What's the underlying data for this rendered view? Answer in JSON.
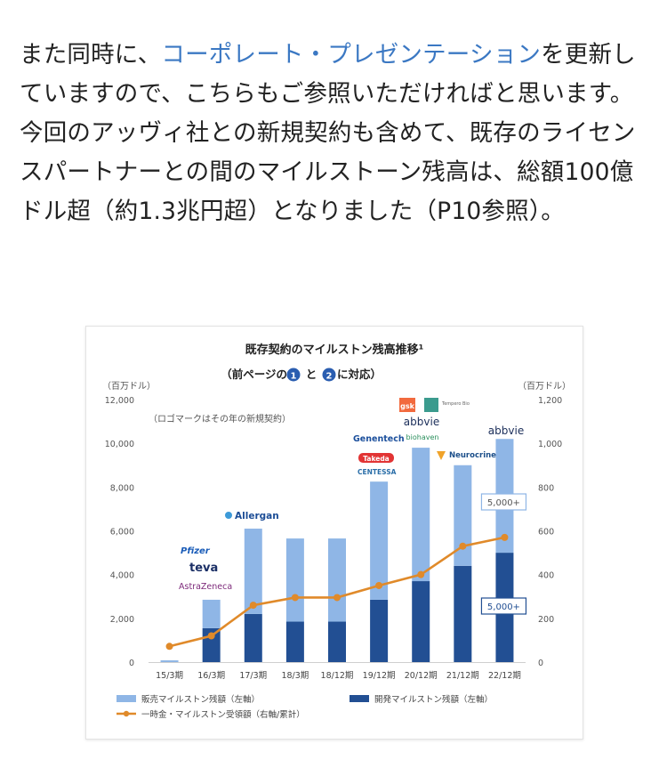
{
  "paragraph": {
    "part1": "また同時に、",
    "link": "コーポレート・プレゼンテーション",
    "part2": "を更新していますので、こちらもご参照いただければと思います。今回のアッヴィ社との新規契約も含めて、既存のライセンスパートナーとの間のマイルストーン残高は、総額100億ドル超（約1.3兆円超）となりました（P10参照）。"
  },
  "chart_data": {
    "type": "bar",
    "title": "既存契約のマイルストン残高推移¹",
    "subtitle_prefix": "（前ページの",
    "subtitle_mid": "と",
    "subtitle_suffix": "に対応）",
    "subtitle_circles": [
      "1",
      "2"
    ],
    "note": "（ロゴマークはその年の新規契約）",
    "left_axis": {
      "unit": "（百万ドル）",
      "min": 0,
      "max": 12000,
      "ticks": [
        "0",
        "2,000",
        "4,000",
        "6,000",
        "8,000",
        "10,000",
        "12,000"
      ]
    },
    "right_axis": {
      "unit": "（百万ドル）",
      "min": 0,
      "max": 1200,
      "ticks": [
        "0",
        "200",
        "400",
        "600",
        "800",
        "1,000",
        "1,200"
      ]
    },
    "categories": [
      "15/3期",
      "16/3期",
      "17/3期",
      "18/3期",
      "18/12期",
      "19/12期",
      "20/12期",
      "21/12期",
      "22/12期"
    ],
    "series": [
      {
        "name": "販売マイルストン残額（左軸）",
        "kind": "bar",
        "color": "#8fb6e6",
        "values": [
          80,
          1300,
          3900,
          3800,
          3800,
          5400,
          6100,
          4600,
          5200
        ]
      },
      {
        "name": "開発マイルストン残額（左軸）",
        "kind": "bar",
        "color": "#224f93",
        "values": [
          0,
          1550,
          2200,
          1850,
          1850,
          2850,
          3700,
          4400,
          5000
        ]
      },
      {
        "name": "一時金・マイルストン受領額（右軸/累計）",
        "kind": "line",
        "color": "#e08a2a",
        "values": [
          72,
          120,
          260,
          295,
          295,
          350,
          400,
          530,
          570
        ]
      }
    ],
    "callouts": [
      "5,000+",
      "5,000+"
    ],
    "logos": [
      {
        "category": "16/3期",
        "names": [
          "Pfizer",
          "teva",
          "AstraZeneca"
        ]
      },
      {
        "category": "17/3期",
        "names": [
          "Allergan"
        ]
      },
      {
        "category": "19/12期",
        "names": [
          "Genentech",
          "Takeda",
          "CENTESSA"
        ]
      },
      {
        "category": "20/12期",
        "names": [
          "gsk",
          "Tempero Bio",
          "abbvie",
          "biohaven"
        ]
      },
      {
        "category": "21/12期",
        "names": [
          "Neurocrine"
        ]
      },
      {
        "category": "22/12期",
        "names": [
          "abbvie"
        ]
      }
    ],
    "grid": false,
    "legend_position": "bottom"
  }
}
